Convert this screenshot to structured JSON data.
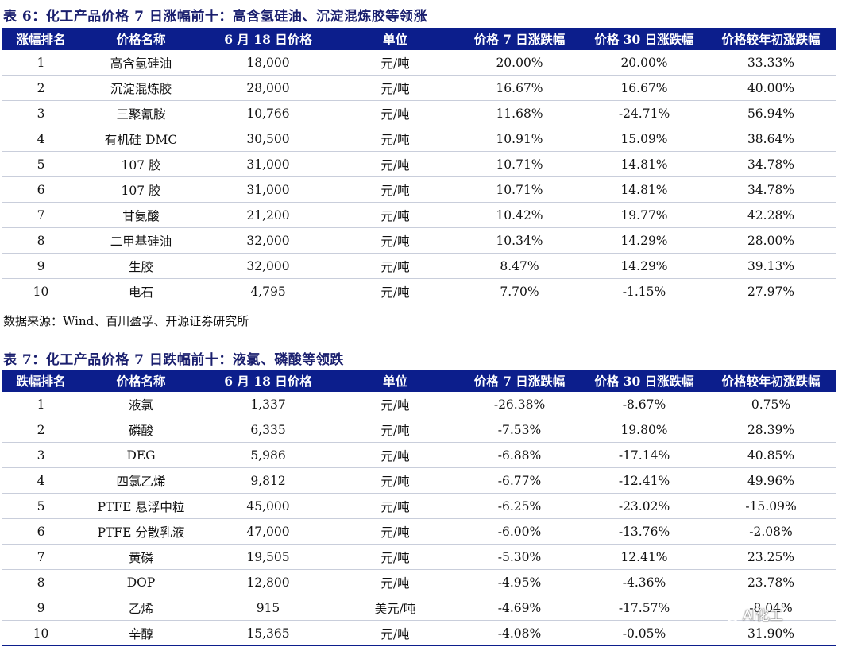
{
  "table1": {
    "title": "表 6：化工产品价格 7 日涨幅前十：高含氢硅油、沉淀混炼胶等领涨",
    "headers": [
      "涨幅排名",
      "价格名称",
      "6 月 18 日价格",
      "单位",
      "价格 7 日涨跌幅",
      "价格 30 日涨跌幅",
      "价格较年初涨跌幅"
    ],
    "rows": [
      [
        "1",
        "高含氢硅油",
        "18,000",
        "元/吨",
        "20.00%",
        "20.00%",
        "33.33%"
      ],
      [
        "2",
        "沉淀混炼胶",
        "28,000",
        "元/吨",
        "16.67%",
        "16.67%",
        "40.00%"
      ],
      [
        "3",
        "三聚氰胺",
        "10,766",
        "元/吨",
        "11.68%",
        "-24.71%",
        "56.94%"
      ],
      [
        "4",
        "有机硅 DMC",
        "30,500",
        "元/吨",
        "10.91%",
        "15.09%",
        "38.64%"
      ],
      [
        "5",
        "107 胶",
        "31,000",
        "元/吨",
        "10.71%",
        "14.81%",
        "34.78%"
      ],
      [
        "6",
        "107 胶",
        "31,000",
        "元/吨",
        "10.71%",
        "14.81%",
        "34.78%"
      ],
      [
        "7",
        "甘氨酸",
        "21,200",
        "元/吨",
        "10.42%",
        "19.77%",
        "42.28%"
      ],
      [
        "8",
        "二甲基硅油",
        "32,000",
        "元/吨",
        "10.34%",
        "14.29%",
        "28.00%"
      ],
      [
        "9",
        "生胶",
        "32,000",
        "元/吨",
        "8.47%",
        "14.29%",
        "39.13%"
      ],
      [
        "10",
        "电石",
        "4,795",
        "元/吨",
        "7.70%",
        "-1.15%",
        "27.97%"
      ]
    ]
  },
  "source": "数据来源：Wind、百川盈孚、开源证券研究所",
  "table2": {
    "title": "表 7：化工产品价格 7 日跌幅前十：液氯、磷酸等领跌",
    "headers": [
      "跌幅排名",
      "价格名称",
      "6 月 18 日价格",
      "单位",
      "价格 7 日涨跌幅",
      "价格 30 日涨跌幅",
      "价格较年初涨跌幅"
    ],
    "rows": [
      [
        "1",
        "液氯",
        "1,337",
        "元/吨",
        "-26.38%",
        "-8.67%",
        "0.75%"
      ],
      [
        "2",
        "磷酸",
        "6,335",
        "元/吨",
        "-7.53%",
        "19.80%",
        "28.39%"
      ],
      [
        "3",
        "DEG",
        "5,986",
        "元/吨",
        "-6.88%",
        "-17.14%",
        "40.85%"
      ],
      [
        "4",
        "四氯乙烯",
        "9,812",
        "元/吨",
        "-6.77%",
        "-12.41%",
        "49.96%"
      ],
      [
        "5",
        "PTFE 悬浮中粒",
        "45,000",
        "元/吨",
        "-6.25%",
        "-23.02%",
        "-15.09%"
      ],
      [
        "6",
        "PTFE 分散乳液",
        "47,000",
        "元/吨",
        "-6.00%",
        "-13.76%",
        "-2.08%"
      ],
      [
        "7",
        "黄磷",
        "19,505",
        "元/吨",
        "-5.30%",
        "12.41%",
        "23.25%"
      ],
      [
        "8",
        "DOP",
        "12,800",
        "元/吨",
        "-4.95%",
        "-4.36%",
        "23.78%"
      ],
      [
        "9",
        "乙烯",
        "915",
        "美元/吨",
        "-4.69%",
        "-17.57%",
        "-8.04%"
      ],
      [
        "10",
        "辛醇",
        "15,365",
        "元/吨",
        "-4.08%",
        "-0.05%",
        "31.90%"
      ]
    ]
  },
  "watermark": {
    "text": "AI化工",
    "icon": "wechat-icon"
  },
  "colors": {
    "header_bg": "#0c1e8c",
    "title_text": "#1a1f6e",
    "row_divider": "#c9cedb"
  }
}
